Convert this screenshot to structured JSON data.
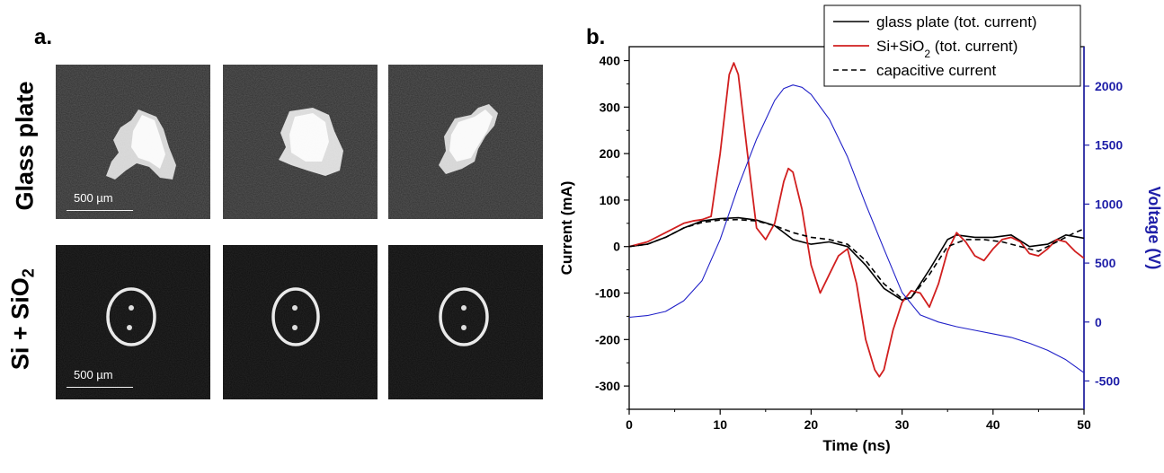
{
  "panel_a": {
    "label": "a.",
    "row_labels": {
      "top": "Glass plate",
      "bottom_prefix": "Si + SiO",
      "bottom_sub": "2"
    },
    "scale_label": "500 µm"
  },
  "panel_b": {
    "label": "b."
  },
  "chart_data": {
    "type": "line",
    "xlabel": "Time (ns)",
    "ylabel": "Current (mA)",
    "ylabel_right": "Voltage (V)",
    "xlim": [
      0,
      50
    ],
    "ylim": [
      -350,
      430
    ],
    "ylim_right": [
      -740,
      2335
    ],
    "x_ticks": [
      "0",
      "10",
      "20",
      "30",
      "40",
      "50"
    ],
    "y_ticks": [
      "400",
      "300",
      "200",
      "100",
      "0",
      "-100",
      "-200",
      "-300"
    ],
    "y_right_ticks": [
      "2000",
      "1500",
      "1000",
      "500",
      "0",
      "-500"
    ],
    "grid": false,
    "legend_position": "top-right",
    "legend": [
      {
        "text": "glass plate (tot. current)",
        "sub": "",
        "tail": ""
      },
      {
        "text": "Si+SiO",
        "sub": "2",
        "tail": " (tot. current)"
      },
      {
        "text": "capacitive current",
        "sub": "",
        "tail": ""
      }
    ],
    "colors": {
      "glass": "#000000",
      "si": "#d11f1f",
      "capacitive": "#000000",
      "voltage": "#2020c8",
      "right_axis": "#1f1fa8"
    },
    "series": [
      {
        "name": "glass plate (tot. current)",
        "axis": "left",
        "x": [
          0,
          2,
          4,
          6,
          8,
          10,
          12,
          14,
          16,
          18,
          20,
          22,
          24,
          26,
          28,
          30,
          31,
          33,
          35,
          36,
          38,
          40,
          42,
          44,
          46,
          48,
          50
        ],
        "y": [
          0,
          5,
          20,
          40,
          55,
          60,
          62,
          57,
          45,
          15,
          5,
          10,
          0,
          -40,
          -90,
          -115,
          -110,
          -50,
          15,
          25,
          20,
          20,
          25,
          0,
          5,
          25,
          18
        ]
      },
      {
        "name": "Si+SiO2 (tot. current)",
        "axis": "left",
        "x": [
          0,
          2,
          4,
          6,
          7,
          8,
          9,
          10,
          11,
          11.5,
          12,
          13,
          14,
          15,
          16,
          17,
          17.5,
          18,
          19,
          20,
          21,
          22,
          23,
          24,
          25,
          26,
          27,
          27.5,
          28,
          29,
          30,
          31,
          32,
          33,
          34,
          35,
          36,
          37,
          38,
          39,
          40,
          41,
          42,
          43,
          44,
          45,
          46,
          47,
          48,
          49,
          50
        ],
        "y": [
          0,
          10,
          30,
          50,
          55,
          58,
          65,
          200,
          370,
          395,
          370,
          200,
          40,
          15,
          50,
          140,
          168,
          160,
          80,
          -40,
          -100,
          -60,
          -20,
          -5,
          -80,
          -200,
          -265,
          -280,
          -265,
          -180,
          -120,
          -95,
          -100,
          -130,
          -80,
          -10,
          30,
          10,
          -20,
          -30,
          -5,
          15,
          20,
          10,
          -15,
          -20,
          -5,
          15,
          10,
          -10,
          -25
        ]
      },
      {
        "name": "capacitive current",
        "axis": "left",
        "x": [
          0,
          2,
          4,
          6,
          8,
          10,
          12,
          14,
          16,
          18,
          20,
          22,
          24,
          26,
          28,
          30,
          31,
          33,
          35,
          37,
          39,
          41,
          43,
          45,
          47,
          49,
          50
        ],
        "y": [
          0,
          5,
          20,
          40,
          52,
          57,
          58,
          55,
          45,
          30,
          20,
          15,
          5,
          -30,
          -80,
          -112,
          -110,
          -60,
          0,
          15,
          15,
          10,
          0,
          -10,
          10,
          30,
          38
        ]
      },
      {
        "name": "Voltage",
        "axis": "right",
        "x": [
          0,
          2,
          4,
          6,
          8,
          10,
          12,
          14,
          16,
          17,
          18,
          19,
          20,
          22,
          24,
          26,
          28,
          30,
          32,
          34,
          36,
          38,
          40,
          42,
          44,
          46,
          48,
          50
        ],
        "y": [
          40,
          55,
          90,
          180,
          350,
          700,
          1150,
          1550,
          1880,
          1980,
          2010,
          1990,
          1930,
          1720,
          1400,
          1000,
          620,
          250,
          60,
          0,
          -40,
          -70,
          -100,
          -130,
          -180,
          -240,
          -320,
          -430
        ]
      }
    ]
  }
}
